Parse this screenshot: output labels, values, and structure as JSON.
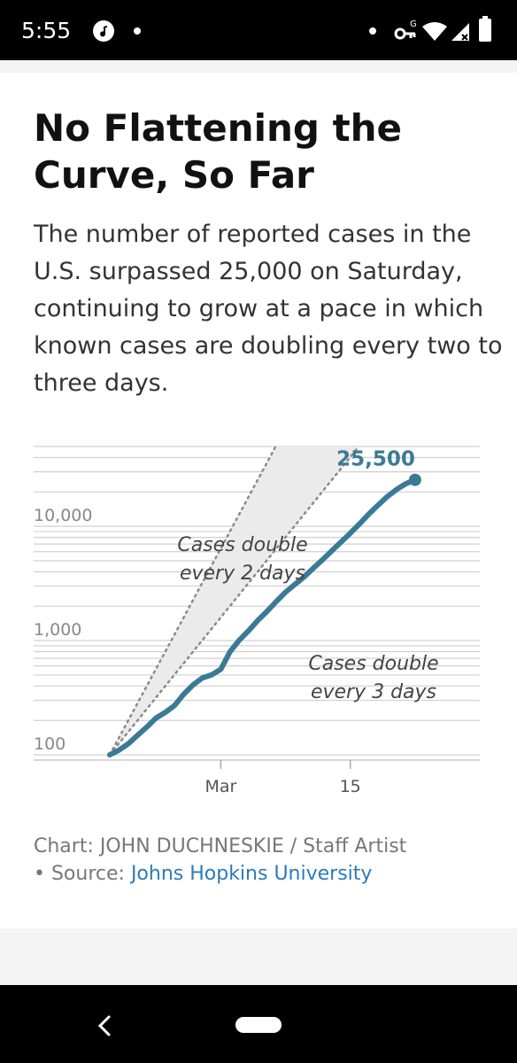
{
  "status_bar": {
    "time": "5:55",
    "icons": [
      "music-app-icon",
      "notification-dot-icon",
      "vpn-key-icon",
      "wifi-icon",
      "signal-icon",
      "battery-icon"
    ]
  },
  "article": {
    "title": "No Flattening the Curve, So Far",
    "subtitle": "The number of reported cases in the U.S. surpassed 25,000 on Saturday, continuing to grow at a pace in which known cases are doubling every two to three days."
  },
  "chart_data": {
    "type": "line",
    "yscale": "log",
    "ylim": [
      90,
      50000
    ],
    "ytick_labels": [
      {
        "value": 100,
        "label": "100"
      },
      {
        "value": 1000,
        "label": "1,000"
      },
      {
        "value": 10000,
        "label": "10,000"
      }
    ],
    "xtick_labels": [
      {
        "day": 0,
        "label": "Mar"
      },
      {
        "day": 14,
        "label": "15"
      }
    ],
    "xlim": [
      -12,
      27
    ],
    "series": [
      {
        "kind": "reported-cases",
        "x": [
          -12,
          -11,
          -10,
          -9,
          -8,
          -7,
          -6,
          -5,
          -4,
          -3,
          -2,
          -1,
          0,
          1,
          2,
          3,
          4,
          5,
          6,
          7,
          8,
          9,
          10,
          11,
          12,
          13,
          14,
          15,
          16,
          17,
          18,
          19,
          20,
          21
        ],
        "values": [
          100,
          110,
          125,
          148,
          175,
          210,
          235,
          270,
          340,
          410,
          470,
          500,
          560,
          800,
          1010,
          1220,
          1500,
          1800,
          2200,
          2650,
          3100,
          3600,
          4300,
          5100,
          6100,
          7300,
          8700,
          10500,
          12800,
          15300,
          18200,
          21000,
          23600,
          25500
        ],
        "color": "#3b7a96"
      }
    ],
    "reference_lines": [
      {
        "label": "Cases double every 2 days",
        "x": [
          -12,
          22
        ],
        "values": [
          100,
          13107200
        ],
        "style": "dotted"
      },
      {
        "label": "Cases double every 3 days",
        "x": [
          -12,
          22
        ],
        "values": [
          100,
          256000
        ],
        "style": "dotted"
      }
    ],
    "callout": {
      "label": "25,500",
      "value": 25500,
      "x": 21
    },
    "colors": {
      "line": "#3b7a96",
      "band": "#ebebeb",
      "grid": "#d0d0d0",
      "reference": "#8a8a8a",
      "callout": "#3b7a96"
    }
  },
  "credit": {
    "line1": "Chart: JOHN DUCHNESKIE / Staff Artist",
    "prefix": "• Source: ",
    "source_link": "Johns Hopkins University"
  },
  "nav": {
    "back_icon": "back-chevron-icon",
    "home_icon": "home-pill-icon"
  }
}
